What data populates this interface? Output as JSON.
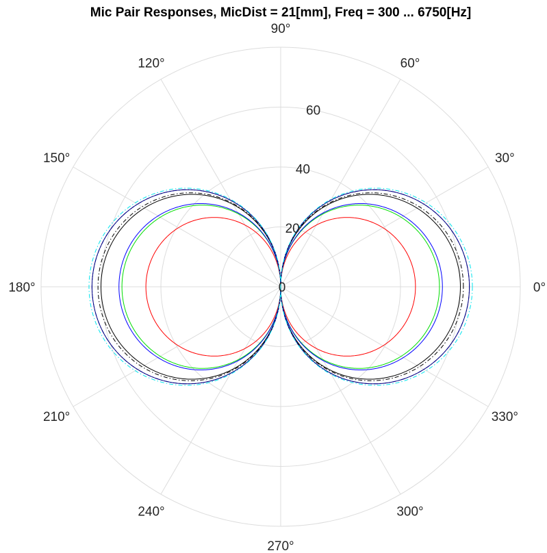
{
  "chart_data": {
    "type": "polar_line",
    "title": "Mic Pair Responses, MicDist = 21[mm], Freq = 300 ... 6750[Hz]",
    "theta_unit": "degrees",
    "theta_ticks": [
      0,
      30,
      60,
      90,
      120,
      150,
      180,
      210,
      240,
      270,
      300,
      330
    ],
    "theta_tick_labels": [
      "0°",
      "30°",
      "60°",
      "90°",
      "120°",
      "150°",
      "180°",
      "210°",
      "240°",
      "270°",
      "300°",
      "330°"
    ],
    "r_ticks": [
      0,
      20,
      40,
      60
    ],
    "r_tick_labels": [
      "0",
      "20",
      "40",
      "60"
    ],
    "r_lim": [
      0,
      80
    ],
    "r_tick_label_angle_deg": 80,
    "grid": true,
    "legend": "none",
    "series": [
      {
        "pattern": "figure-eight",
        "color": "#ff0000",
        "style": "solid",
        "peak_r": 45
      },
      {
        "pattern": "figure-eight",
        "color": "#00dd00",
        "style": "solid",
        "peak_r": 53
      },
      {
        "pattern": "figure-eight",
        "color": "#0000ff",
        "style": "solid",
        "peak_r": 54
      },
      {
        "pattern": "figure-eight",
        "color": "#000000",
        "style": "solid",
        "peak_r": 60
      },
      {
        "pattern": "figure-eight",
        "color": "#000000",
        "style": "dashdot",
        "peak_r": 61
      },
      {
        "pattern": "figure-eight",
        "color": "#0000aa",
        "style": "dashdot",
        "peak_r": 63
      },
      {
        "pattern": "figure-eight",
        "color": "#000080",
        "style": "solid",
        "peak_r": 63
      },
      {
        "pattern": "figure-eight",
        "color": "#00e5ee",
        "style": "dashdot",
        "peak_r": 64
      }
    ]
  }
}
